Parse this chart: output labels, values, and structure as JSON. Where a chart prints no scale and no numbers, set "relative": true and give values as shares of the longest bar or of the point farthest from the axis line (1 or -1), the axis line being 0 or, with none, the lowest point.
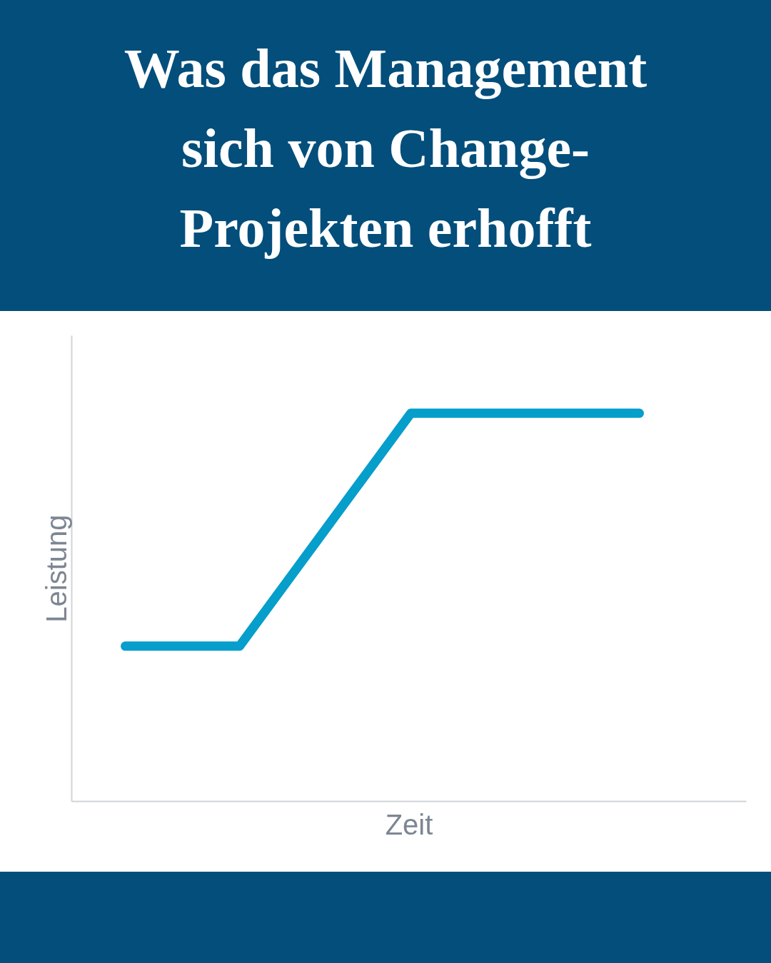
{
  "chart_data": {
    "type": "line",
    "title": "Was das Management sich von Change-Projekten erhofft",
    "xlabel": "Zeit",
    "ylabel": "Leistung",
    "relative": true,
    "categories": [
      null,
      null,
      null,
      null,
      null,
      null,
      null,
      null,
      null,
      null
    ],
    "series": [
      {
        "color": "#069ecb",
        "values": [
          0.4,
          0.4,
          0.4,
          0.6,
          0.8,
          1,
          1,
          1,
          1,
          1
        ]
      }
    ],
    "marker": "none",
    "line_style": "solid"
  }
}
